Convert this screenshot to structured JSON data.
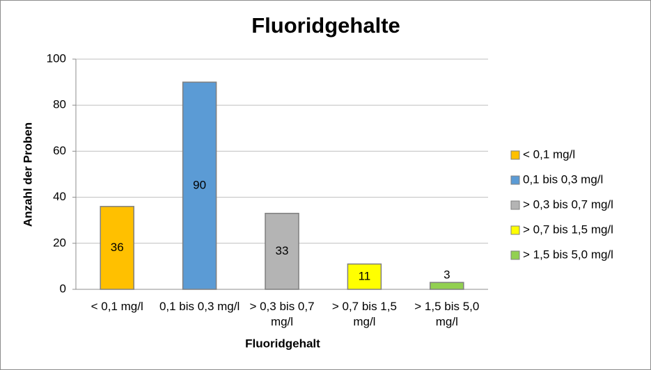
{
  "chart_data": {
    "type": "bar",
    "title": "Fluoridgehalte",
    "x_label": "Fluoridgehalt",
    "y_label": "Anzahl der Proben",
    "categories": [
      "< 0,1 mg/l",
      "0,1 bis 0,3 mg/l",
      "> 0,3 bis 0,7 mg/l",
      "> 0,7 bis 1,5 mg/l",
      "> 1,5 bis 5,0 mg/l"
    ],
    "values": [
      36,
      90,
      33,
      11,
      3
    ],
    "colors": [
      "#ffc000",
      "#5b9bd5",
      "#b4b4b4",
      "#ffff00",
      "#92d050"
    ],
    "ylim": [
      0,
      100
    ],
    "yticks": [
      0,
      20,
      40,
      60,
      80,
      100
    ],
    "grid": true,
    "legend": "right"
  }
}
